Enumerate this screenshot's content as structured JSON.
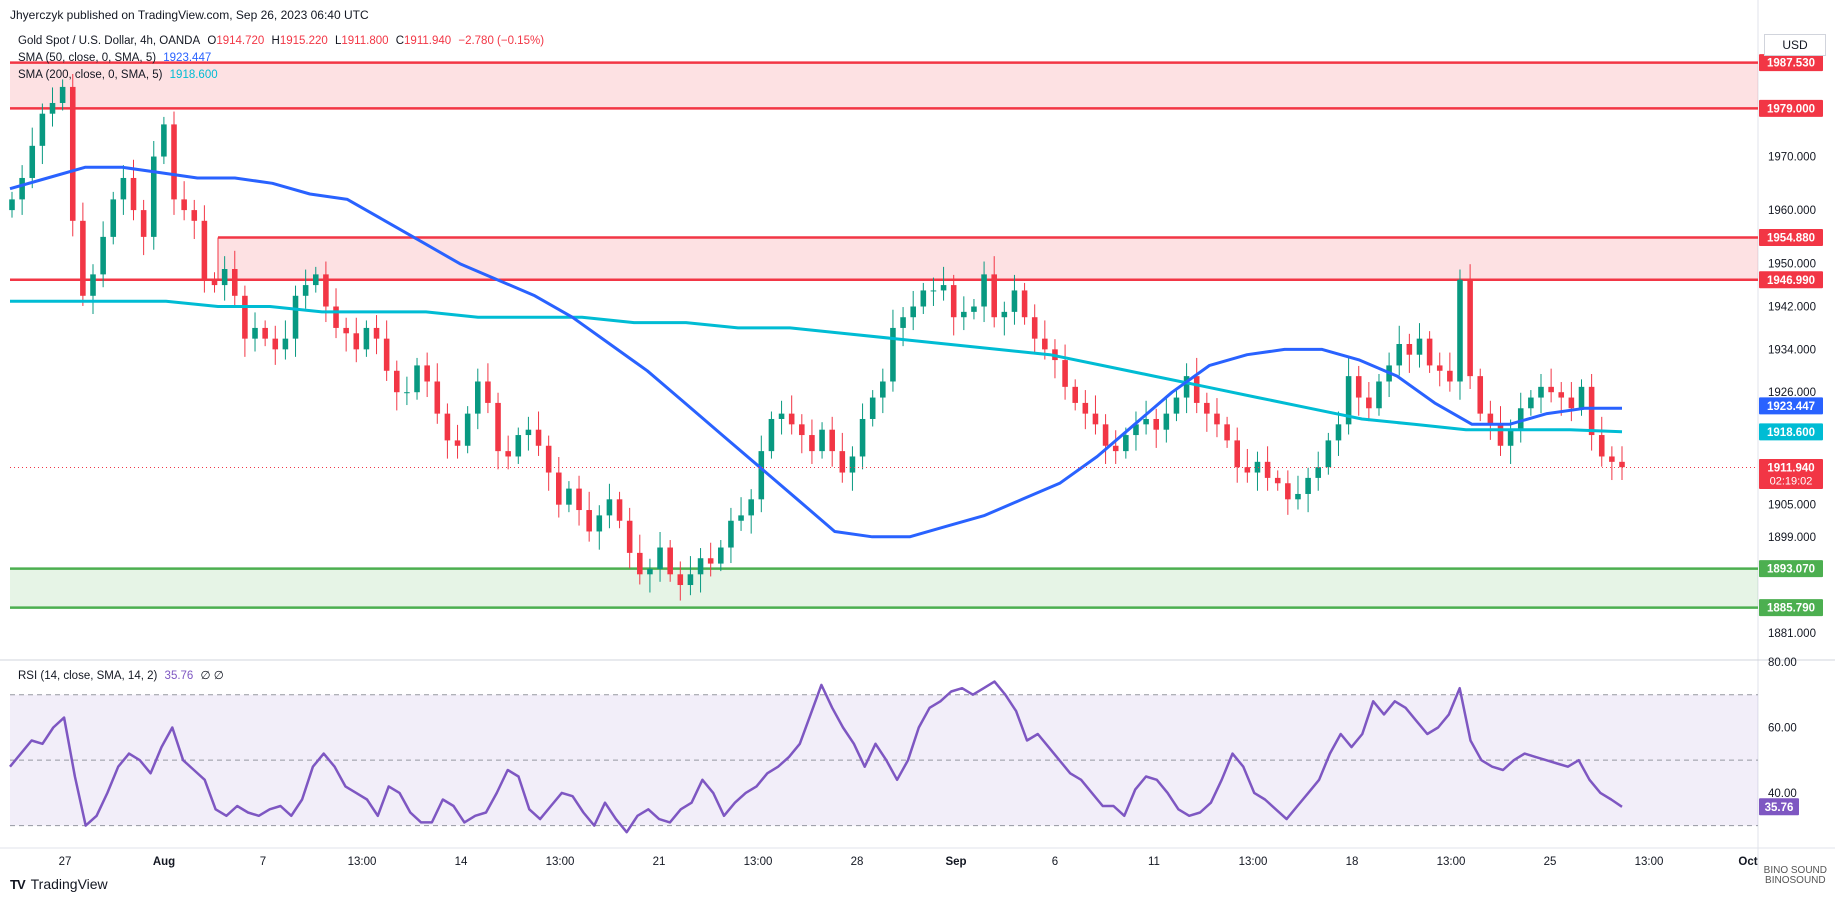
{
  "header": {
    "published": "Jhyerczyk published on TradingView.com, Sep 26, 2023 06:40 UTC",
    "symbol": "Gold Spot / U.S. Dollar, 4h, OANDA",
    "ohlc": {
      "o_label": "O",
      "o": "1914.720",
      "h_label": "H",
      "h": "1915.220",
      "l_label": "L",
      "l": "1911.800",
      "c_label": "C",
      "c": "1911.940",
      "change": "−2.780 (−0.15%)"
    },
    "sma50_label": "SMA (50, close, 0, SMA, 5)",
    "sma50_value": "1923.447",
    "sma200_label": "SMA (200, close, 0, SMA, 5)",
    "sma200_value": "1918.600",
    "rsi_label": "RSI (14, close, SMA, 14, 2)",
    "rsi_value": "35.76",
    "rsi_extra": "∅ ∅",
    "currency": "USD"
  },
  "footer": {
    "brand": "TradingView",
    "watermark_line1": "BINO SOUND",
    "watermark_line2": "BINOSOUND"
  },
  "colors": {
    "up": "#089981",
    "down": "#f23645",
    "sma50": "#2962ff",
    "sma200": "#00bcd4",
    "resistance": "#f23645",
    "support": "#4caf50",
    "rsi": "#7e57c2"
  },
  "chart_data": {
    "type": "candlestick",
    "title": "Gold Spot / U.S. Dollar, 4h, OANDA",
    "ylim": [
      1876,
      1994
    ],
    "price_ticks": [
      "1970.000",
      "1960.000",
      "1950.000",
      "1942.000",
      "1934.000",
      "1926.000",
      "1905.000",
      "1899.000",
      "1881.000"
    ],
    "time_ticks": [
      "27",
      "Aug",
      "7",
      "13:00",
      "14",
      "13:00",
      "21",
      "13:00",
      "28",
      "Sep",
      "6",
      "11",
      "13:00",
      "18",
      "13:00",
      "25",
      "13:00",
      "Oct"
    ],
    "price_badges": [
      {
        "label": "1987.530",
        "kind": "resistance"
      },
      {
        "label": "1979.000",
        "kind": "resistance"
      },
      {
        "label": "1954.880",
        "kind": "resistance"
      },
      {
        "label": "1946.990",
        "kind": "resistance"
      },
      {
        "label": "1923.447",
        "kind": "sma50"
      },
      {
        "label": "1918.600",
        "kind": "sma200"
      },
      {
        "label": "1911.940",
        "kind": "last",
        "countdown": "02:19:02"
      },
      {
        "label": "1893.070",
        "kind": "support"
      },
      {
        "label": "1885.790",
        "kind": "support"
      }
    ],
    "zones": [
      {
        "kind": "resistance",
        "from": 1979.0,
        "to": 1987.53
      },
      {
        "kind": "resistance",
        "from": 1946.99,
        "to": 1954.88
      },
      {
        "kind": "support",
        "from": 1885.79,
        "to": 1893.07
      }
    ],
    "close_series": [
      1962,
      1966,
      1972,
      1978,
      1980,
      1983,
      1958,
      1944,
      1948,
      1955,
      1962,
      1966,
      1960,
      1955,
      1970,
      1976,
      1962,
      1960,
      1958,
      1947,
      1946,
      1949,
      1944,
      1936,
      1938,
      1936,
      1934,
      1936,
      1944,
      1946,
      1948,
      1942,
      1938,
      1937,
      1934,
      1938,
      1936,
      1930,
      1926,
      1926,
      1931,
      1928,
      1922,
      1917,
      1916,
      1922,
      1928,
      1924,
      1915,
      1914,
      1918,
      1919,
      1916,
      1911,
      1905,
      1908,
      1904,
      1900,
      1903,
      1906,
      1902,
      1896,
      1892,
      1893,
      1897,
      1892,
      1890,
      1892,
      1895,
      1894,
      1897,
      1902,
      1903,
      1906,
      1915,
      1921,
      1922,
      1920,
      1918,
      1915,
      1919,
      1915,
      1911,
      1914,
      1921,
      1925,
      1928,
      1938,
      1940,
      1942,
      1945,
      1945,
      1946,
      1940,
      1941,
      1942,
      1948,
      1940,
      1941,
      1945,
      1940,
      1936,
      1934,
      1932,
      1927,
      1924,
      1922,
      1920,
      1916,
      1915,
      1918,
      1920,
      1921,
      1919,
      1922,
      1925,
      1929,
      1924,
      1922,
      1920,
      1917,
      1912,
      1911,
      1913,
      1910,
      1909,
      1906,
      1907,
      1910,
      1912,
      1917,
      1920,
      1929,
      1925,
      1923,
      1928,
      1931,
      1935,
      1933,
      1936,
      1931,
      1930,
      1928,
      1947,
      1929,
      1922,
      1920,
      1916,
      1919,
      1923,
      1925,
      1927,
      1926,
      1925,
      1923,
      1927,
      1918,
      1914,
      1913,
      1912
    ],
    "sma50_series": [
      1964,
      1966,
      1968,
      1968,
      1967,
      1966,
      1966,
      1965,
      1963,
      1962,
      1958,
      1954,
      1950,
      1947,
      1944,
      1940,
      1935,
      1930,
      1924,
      1918,
      1912,
      1906,
      1900,
      1899,
      1899,
      1901,
      1903,
      1906,
      1909,
      1914,
      1920,
      1926,
      1931,
      1933,
      1934,
      1934,
      1932,
      1929,
      1924,
      1920,
      1920,
      1922,
      1923,
      1923
    ],
    "sma200_series": [
      1943,
      1943,
      1943,
      1943,
      1942,
      1942,
      1941,
      1941,
      1941,
      1940,
      1940,
      1940,
      1939,
      1939,
      1938,
      1938,
      1937,
      1936,
      1935,
      1934,
      1933,
      1931,
      1929,
      1927,
      1925,
      1923,
      1921,
      1920,
      1919,
      1919,
      1919,
      1918.6
    ],
    "rsi": {
      "ylim": [
        25,
        80
      ],
      "upper_band": 70,
      "lower_band": 30,
      "mid": 50,
      "ticks": [
        "80.00",
        "60.00",
        "40.00"
      ],
      "last_badge": "35.76",
      "series": [
        48,
        52,
        56,
        55,
        60,
        63,
        45,
        30,
        33,
        40,
        48,
        52,
        50,
        46,
        54,
        60,
        50,
        47,
        44,
        35,
        33,
        36,
        34,
        33,
        35,
        36,
        33,
        38,
        48,
        52,
        48,
        42,
        40,
        38,
        33,
        42,
        40,
        34,
        31,
        31,
        38,
        36,
        31,
        33,
        34,
        40,
        47,
        45,
        35,
        32,
        36,
        40,
        39,
        34,
        30,
        37,
        32,
        28,
        33,
        35,
        32,
        31,
        35,
        37,
        44,
        40,
        33,
        37,
        40,
        42,
        46,
        48,
        51,
        55,
        64,
        73,
        66,
        60,
        55,
        48,
        55,
        50,
        44,
        50,
        60,
        66,
        68,
        71,
        72,
        70,
        72,
        74,
        70,
        65,
        56,
        58,
        54,
        50,
        46,
        44,
        40,
        36,
        36,
        33,
        41,
        45,
        44,
        40,
        35,
        33,
        34,
        37,
        44,
        52,
        48,
        40,
        38,
        35,
        32,
        36,
        40,
        44,
        52,
        58,
        54,
        58,
        68,
        64,
        68,
        66,
        62,
        58,
        60,
        64,
        72,
        56,
        50,
        48,
        47,
        50,
        52,
        51,
        50,
        49,
        48,
        50,
        44,
        40,
        38,
        35.76
      ]
    }
  }
}
